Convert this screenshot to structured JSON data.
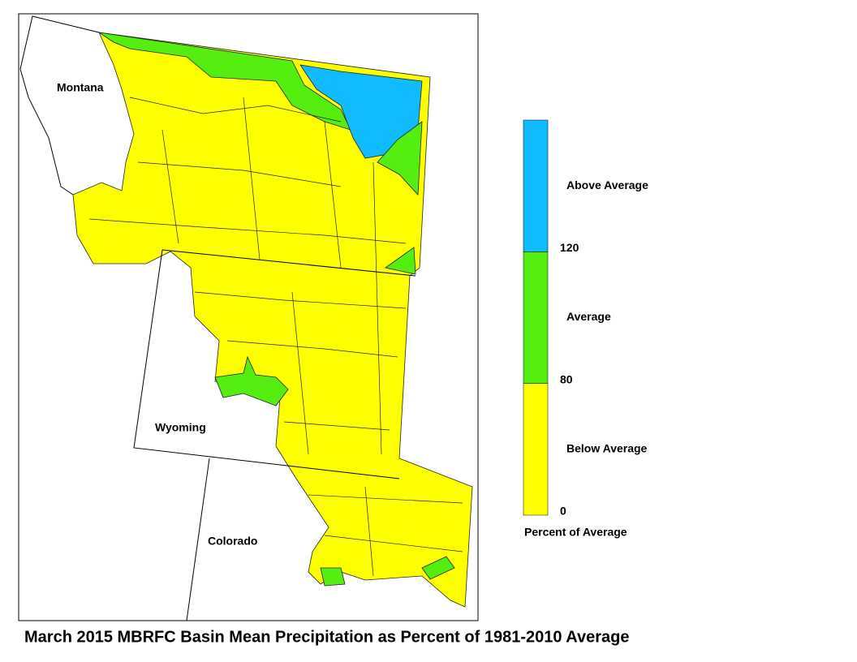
{
  "map": {
    "title": "March 2015 MBRFC Basin Mean Precipitation as Percent of 1981-2010 Average",
    "states": [
      "Montana",
      "Wyoming",
      "Colorado"
    ],
    "legend": {
      "title": "Percent of Average",
      "categories": [
        {
          "label": "Below Average",
          "color": "#ffff00"
        },
        {
          "label": "Average",
          "color": "#55ee11"
        },
        {
          "label": "Above Average",
          "color": "#11bbff"
        }
      ],
      "ticks": [
        0,
        80,
        120
      ]
    }
  }
}
